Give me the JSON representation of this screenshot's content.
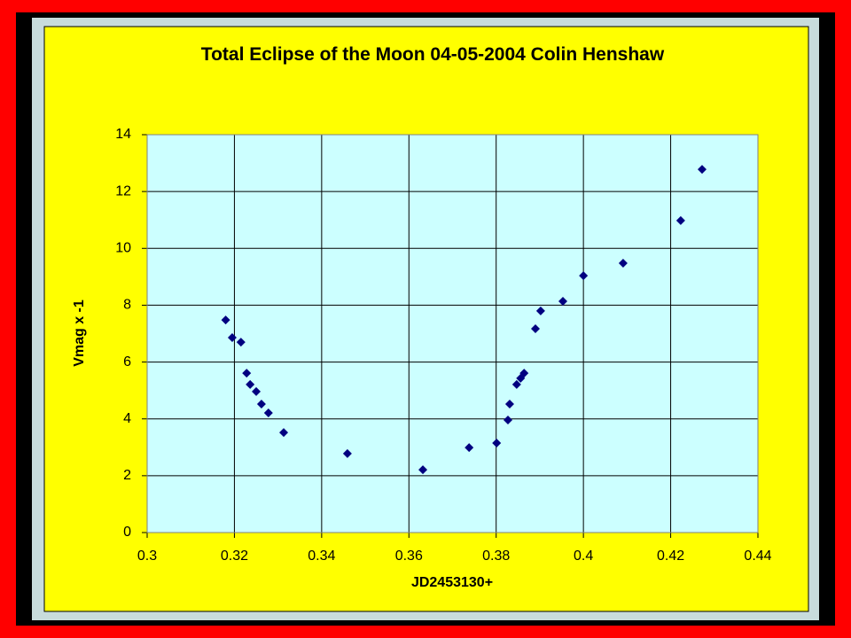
{
  "chart_data": {
    "type": "scatter",
    "title": "Total Eclipse of the Moon 04-05-2004 Colin Henshaw",
    "x_label": "JD2453130+",
    "y_label": "Vmag x -1",
    "color": "#000080",
    "x": [
      0.318,
      0.3195,
      0.3215,
      0.3228,
      0.3236,
      0.325,
      0.3262,
      0.3278,
      0.3313,
      0.3459,
      0.3632,
      0.3738,
      0.3801,
      0.3827,
      0.3831,
      0.3847,
      0.3856,
      0.3864,
      0.389,
      0.3902,
      0.3953,
      0.4,
      0.4091,
      0.4223,
      0.4272
    ],
    "values": [
      7.48,
      6.86,
      6.7,
      5.61,
      5.21,
      4.96,
      4.52,
      4.21,
      3.52,
      2.78,
      2.21,
      2.99,
      3.15,
      3.96,
      4.52,
      5.21,
      5.43,
      5.61,
      7.17,
      7.8,
      8.14,
      9.04,
      9.48,
      10.98,
      12.78
    ],
    "xlim": [
      0.3,
      0.44
    ],
    "xticks": [
      0.3,
      0.32,
      0.34,
      0.36,
      0.38,
      0.4,
      0.42,
      0.44
    ],
    "ylim": [
      0,
      14
    ],
    "yticks": [
      0,
      2,
      4,
      6,
      8,
      10,
      12,
      14
    ],
    "grid": true
  }
}
